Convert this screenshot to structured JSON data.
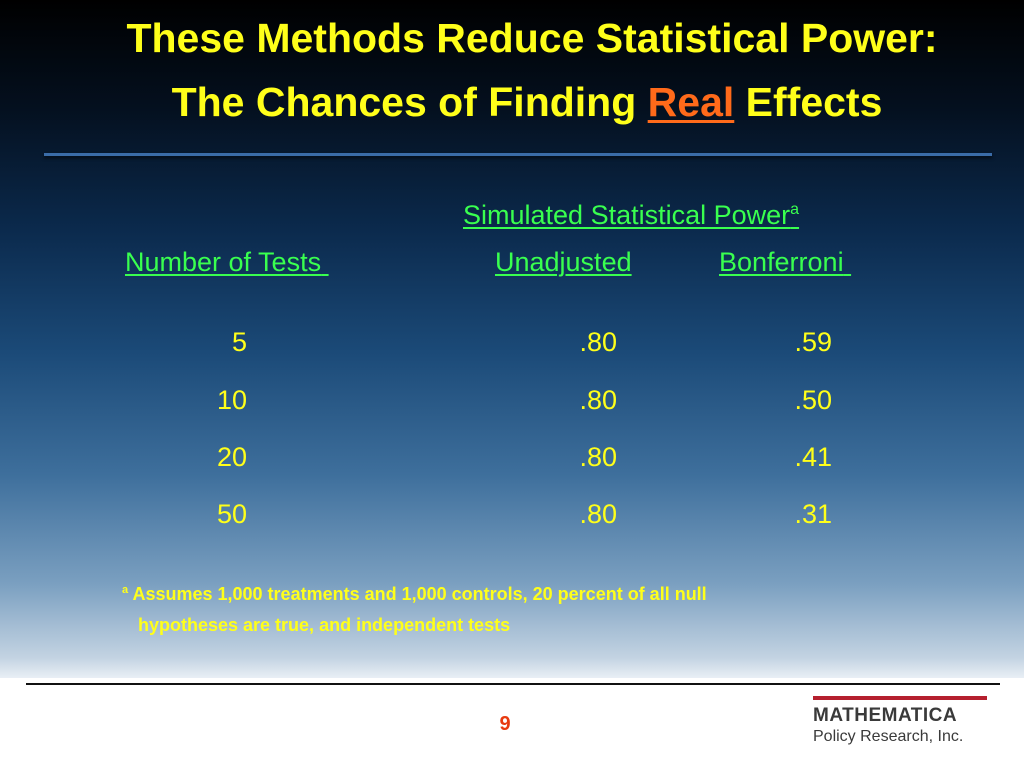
{
  "title": {
    "line1": "These Methods Reduce Statistical Power:",
    "line2_before": "The Chances of Finding ",
    "line2_emphasis": "Real",
    "line2_after": " Effects"
  },
  "table": {
    "group_header": "Simulated Statistical Power",
    "group_header_note": "a",
    "columns": [
      "Number of Tests",
      "Unadjusted",
      "Bonferroni"
    ],
    "rows": [
      {
        "tests": "5",
        "unadjusted": ".80",
        "bonferroni": ".59"
      },
      {
        "tests": "10",
        "unadjusted": ".80",
        "bonferroni": ".50"
      },
      {
        "tests": "20",
        "unadjusted": ".80",
        "bonferroni": ".41"
      },
      {
        "tests": "50",
        "unadjusted": ".80",
        "bonferroni": ".31"
      }
    ]
  },
  "footnote": {
    "marker": "a",
    "line1": "Assumes 1,000 treatments and 1,000 controls, 20 percent of all null",
    "line2": "hypotheses are true, and independent tests"
  },
  "page_number": "9",
  "logo": {
    "name": "MATHEMATICA",
    "sub": "Policy Research, Inc."
  },
  "colors": {
    "title": "#ffff1a",
    "emphasis": "#ff6a1a",
    "header": "#39ff4f",
    "values": "#ffff1a",
    "page_number": "#e83a10",
    "logo_bar": "#b51f2e"
  }
}
